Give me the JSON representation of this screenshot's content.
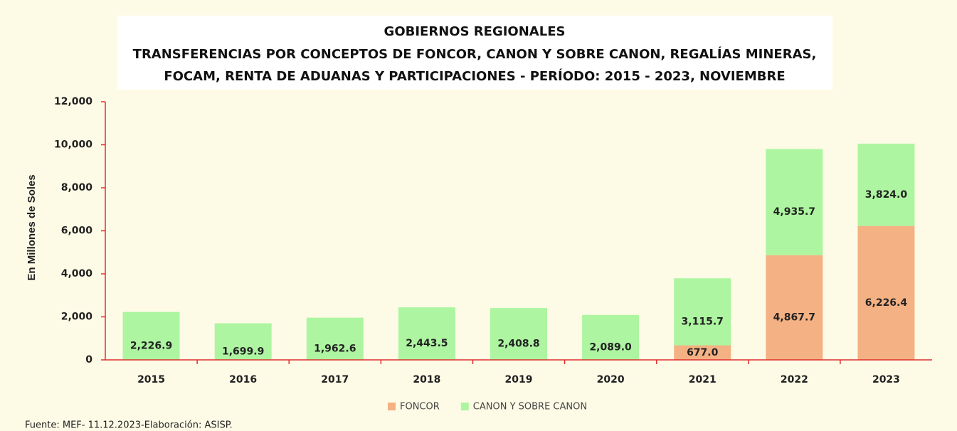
{
  "chart_data": {
    "type": "stacked_bar",
    "title": "GOBIERNOS REGIONALES",
    "subtitle": [
      "TRANSFERENCIAS POR CONCEPTOS DE FONCOR, CANON Y SOBRE CANON, REGALÍAS MINERAS,",
      "FOCAM, RENTA DE ADUANAS Y PARTICIPACIONES - PERÍODO: 2015 - 2023, NOVIEMBRE"
    ],
    "y_label": "En Millones de Soles",
    "categories": [
      "2015",
      "2016",
      "2017",
      "2018",
      "2019",
      "2020",
      "2021",
      "2022",
      "2023"
    ],
    "series": [
      {
        "name": "FONCOR",
        "color": "#f4b183",
        "values": [
          null,
          null,
          null,
          null,
          null,
          null,
          677.0,
          4867.7,
          6226.4
        ],
        "value_labels": [
          null,
          null,
          null,
          null,
          null,
          null,
          "677.0",
          "4,867.7",
          "6,226.4"
        ]
      },
      {
        "name": "CANON Y SOBRE CANON",
        "color": "#adf5a0",
        "values": [
          2226.9,
          1699.9,
          1962.6,
          2443.5,
          2408.8,
          2089.0,
          3115.7,
          4935.7,
          3824.0
        ],
        "value_labels": [
          "2,226.9",
          "1,699.9",
          "1,962.6",
          "2,443.5",
          "2,408.8",
          "2,089.0",
          "3,115.7",
          "4,935.7",
          "3,824.0"
        ]
      }
    ],
    "ylim": [
      0,
      12000
    ],
    "yticks": [
      0,
      {
        "value": 2000,
        "label": "2,000"
      },
      {
        "value": 4000,
        "label": "4,000"
      },
      {
        "value": 6000,
        "label": "6,000"
      },
      {
        "value": 8000,
        "label": "8,000"
      },
      {
        "value": 10000,
        "label": "10,000"
      },
      {
        "value": 12000,
        "label": "12,000"
      }
    ],
    "legend": "bottom",
    "source": "Fuente: MEF- 11.12.2023-Elaboración: ASISP."
  }
}
